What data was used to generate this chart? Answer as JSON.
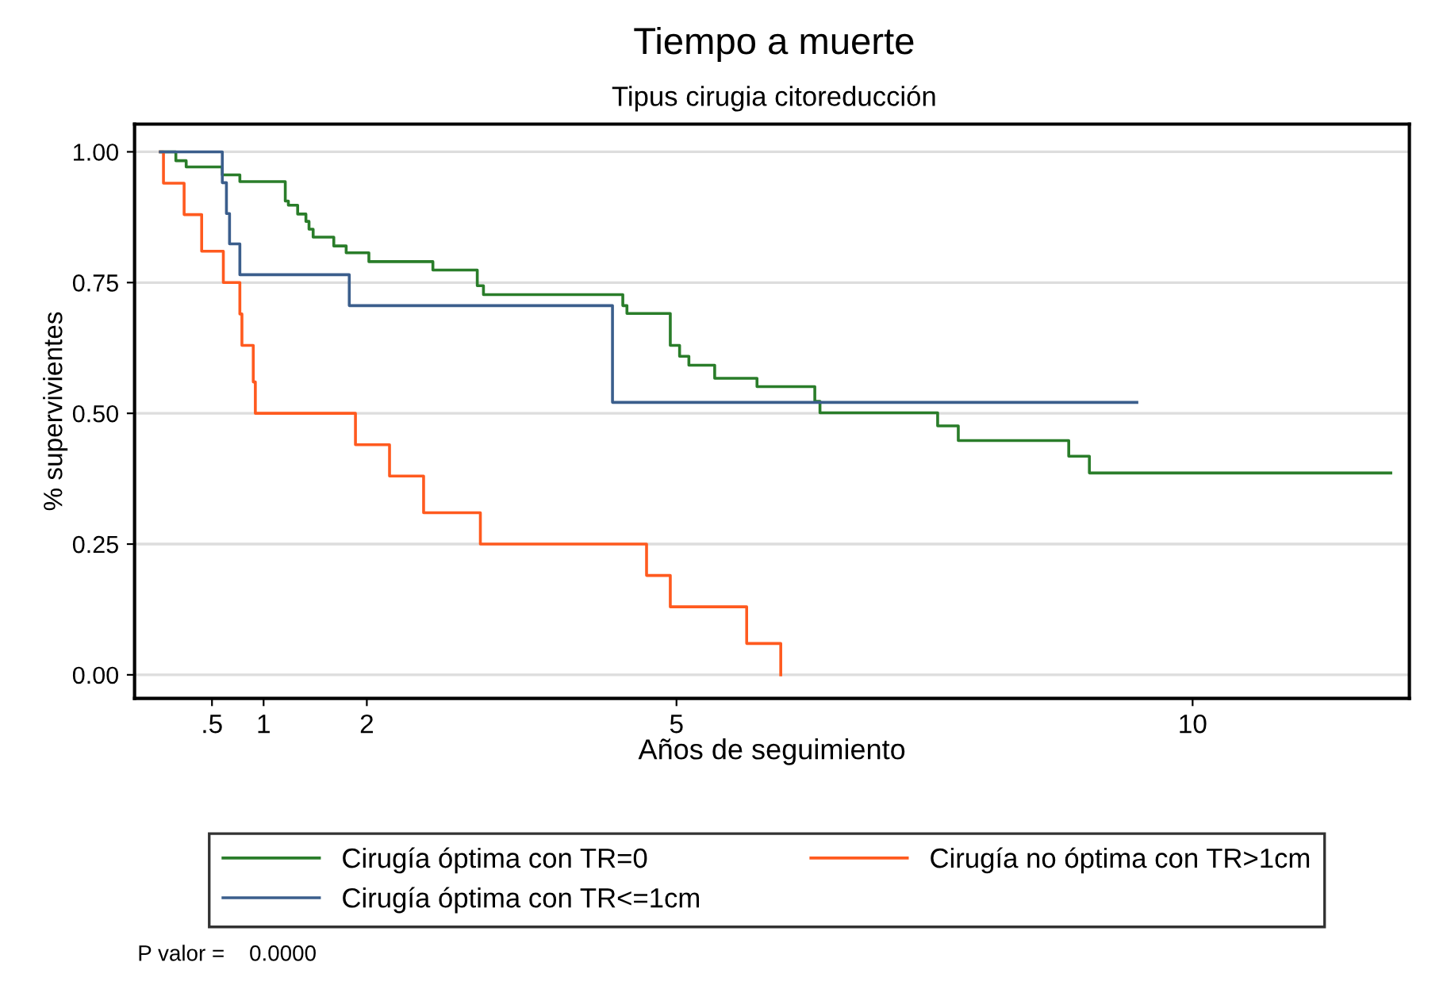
{
  "chart_data": {
    "type": "step",
    "title": "Tiempo a muerte",
    "subtitle": "Tipus cirugia citoreducción",
    "xlabel": "Años de seguimiento",
    "ylabel": "% supervivientes",
    "series": [
      {
        "name": "Cirugía óptima con TR=0",
        "color": "#2a7d2a",
        "x": [
          0,
          0.15,
          0.25,
          0.6,
          0.77,
          1.21,
          1.24,
          1.33,
          1.41,
          1.44,
          1.48,
          1.68,
          1.8,
          2.02,
          2.64,
          3.07,
          3.13,
          4.48,
          4.52,
          4.94,
          5.03,
          5.12,
          5.37,
          5.78,
          6.34,
          6.39,
          7.53,
          7.73,
          8.8,
          9.0,
          11.92
        ],
        "values": [
          1,
          0.983,
          0.971,
          0.956,
          0.943,
          0.906,
          0.898,
          0.881,
          0.867,
          0.852,
          0.837,
          0.82,
          0.807,
          0.79,
          0.774,
          0.744,
          0.727,
          0.706,
          0.691,
          0.63,
          0.609,
          0.592,
          0.567,
          0.551,
          0.523,
          0.501,
          0.476,
          0.448,
          0.418,
          0.386,
          0.386
        ]
      },
      {
        "name": "Cirugía no óptima con TR>1cm",
        "color": "#ff5a1f",
        "x": [
          0,
          0.03,
          0.23,
          0.4,
          0.61,
          0.77,
          0.79,
          0.9,
          0.92,
          1.89,
          2.22,
          2.55,
          3.1,
          4.71,
          4.94,
          5.68,
          6.01
        ],
        "values": [
          1,
          0.94,
          0.88,
          0.81,
          0.75,
          0.69,
          0.63,
          0.56,
          0.5,
          0.44,
          0.38,
          0.31,
          0.25,
          0.19,
          0.13,
          0.06,
          0
        ]
      },
      {
        "name": "Cirugía óptima con TR<=1cm",
        "color": "#3b5e8c",
        "x": [
          0,
          0.6,
          0.64,
          0.67,
          0.77,
          1.83,
          4.38,
          9.46
        ],
        "values": [
          1,
          0.941,
          0.882,
          0.824,
          0.765,
          0.706,
          0.521,
          0.521
        ]
      }
    ],
    "xlim": [
      -0.25,
      12.1
    ],
    "xticks": [
      {
        "value": 0.5,
        "label": ".5"
      },
      1,
      2,
      5,
      10
    ],
    "ylim": [
      -0.045,
      1.053
    ],
    "yticks": [
      {
        "value": 0,
        "label": "0.00"
      },
      {
        "value": 0.25,
        "label": "0.25"
      },
      {
        "value": 0.5,
        "label": "0.50"
      },
      {
        "value": 0.75,
        "label": "0.75"
      },
      {
        "value": 1,
        "label": "1.00"
      }
    ],
    "grid": "y",
    "legend": "bottom",
    "annotations": [
      "P valor =    0.0000"
    ]
  }
}
